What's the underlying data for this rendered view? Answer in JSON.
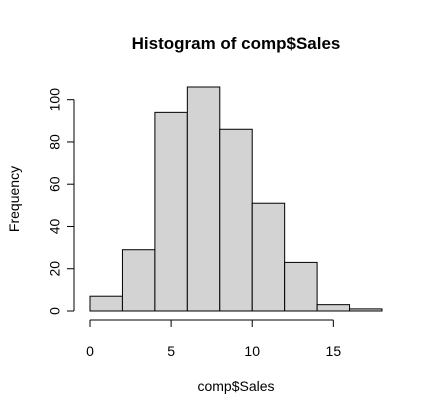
{
  "chart_data": {
    "type": "bar",
    "title": "Histogram of comp$Sales",
    "xlabel": "comp$Sales",
    "ylabel": "Frequency",
    "bins": [
      {
        "from": 0,
        "to": 2,
        "count": 7
      },
      {
        "from": 2,
        "to": 4,
        "count": 29
      },
      {
        "from": 4,
        "to": 6,
        "count": 94
      },
      {
        "from": 6,
        "to": 8,
        "count": 106
      },
      {
        "from": 8,
        "to": 10,
        "count": 86
      },
      {
        "from": 10,
        "to": 12,
        "count": 51
      },
      {
        "from": 12,
        "to": 14,
        "count": 23
      },
      {
        "from": 14,
        "to": 16,
        "count": 3
      },
      {
        "from": 16,
        "to": 18,
        "count": 1
      }
    ],
    "xlim": [
      0,
      18
    ],
    "ylim": [
      0,
      106
    ],
    "x_ticks": [
      0,
      5,
      10,
      15
    ],
    "y_ticks": [
      0,
      20,
      40,
      60,
      80,
      100
    ],
    "bar_color": "#d3d3d3",
    "edge_color": "#000000",
    "grid": false,
    "legend": "none"
  }
}
